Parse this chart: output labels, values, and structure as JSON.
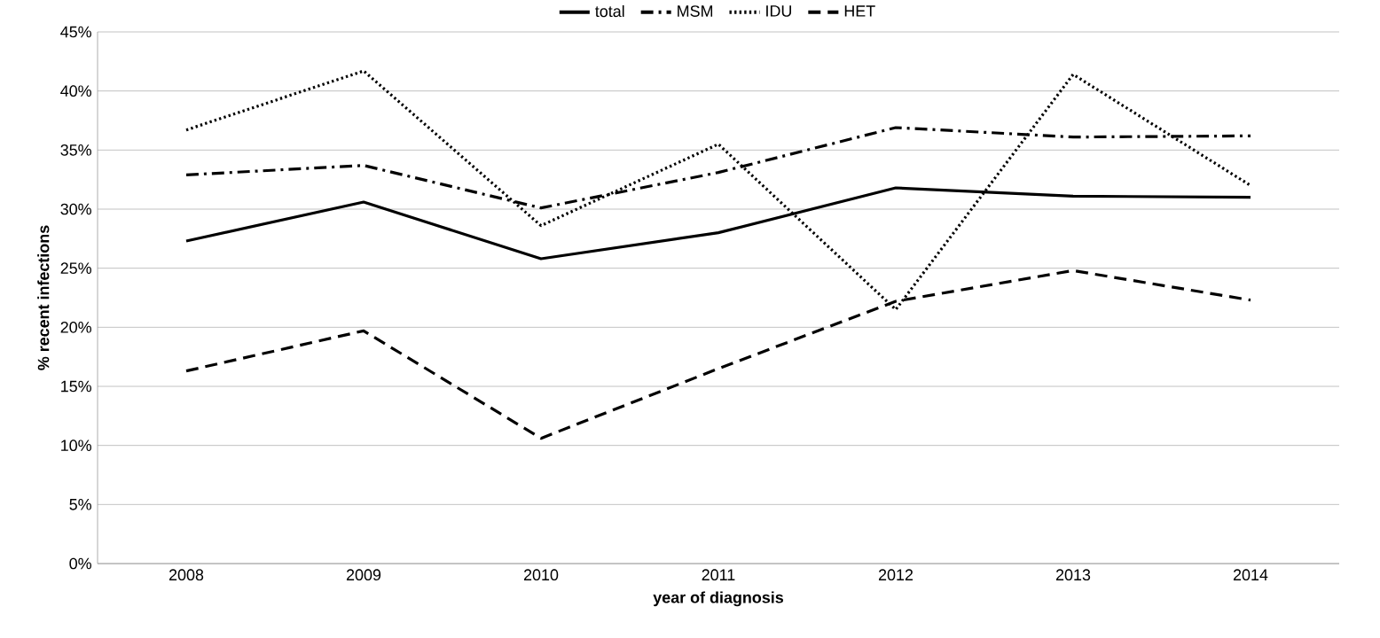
{
  "chart_data": {
    "type": "line",
    "xlabel": "year of diagnosis",
    "ylabel": "% recent infections",
    "categories": [
      "2008",
      "2009",
      "2010",
      "2011",
      "2012",
      "2013",
      "2014"
    ],
    "series": [
      {
        "name": "total",
        "color": "#000000",
        "line_style": "solid",
        "values": [
          27.3,
          30.6,
          25.8,
          28.0,
          31.8,
          31.1,
          31.0
        ]
      },
      {
        "name": "MSM",
        "color": "#000000",
        "line_style": "dashdot",
        "values": [
          32.9,
          33.7,
          30.1,
          33.1,
          36.9,
          36.1,
          36.2
        ]
      },
      {
        "name": "IDU",
        "color": "#000000",
        "line_style": "dotted",
        "values": [
          36.7,
          41.7,
          28.6,
          35.5,
          21.5,
          41.4,
          32.0
        ]
      },
      {
        "name": "HET",
        "color": "#000000",
        "line_style": "dashed",
        "values": [
          16.3,
          19.7,
          10.6,
          16.5,
          22.2,
          24.8,
          22.3
        ]
      }
    ],
    "ylim": [
      0,
      45
    ],
    "yticks": [
      {
        "value": 0,
        "label": "0%"
      },
      {
        "value": 5,
        "label": "5%"
      },
      {
        "value": 10,
        "label": "10%"
      },
      {
        "value": 15,
        "label": "15%"
      },
      {
        "value": 20,
        "label": "20%"
      },
      {
        "value": 25,
        "label": "25%"
      },
      {
        "value": 30,
        "label": "30%"
      },
      {
        "value": 35,
        "label": "35%"
      },
      {
        "value": 40,
        "label": "40%"
      },
      {
        "value": 45,
        "label": "45%"
      }
    ],
    "grid": "y",
    "legend": "top",
    "marker": "none"
  }
}
